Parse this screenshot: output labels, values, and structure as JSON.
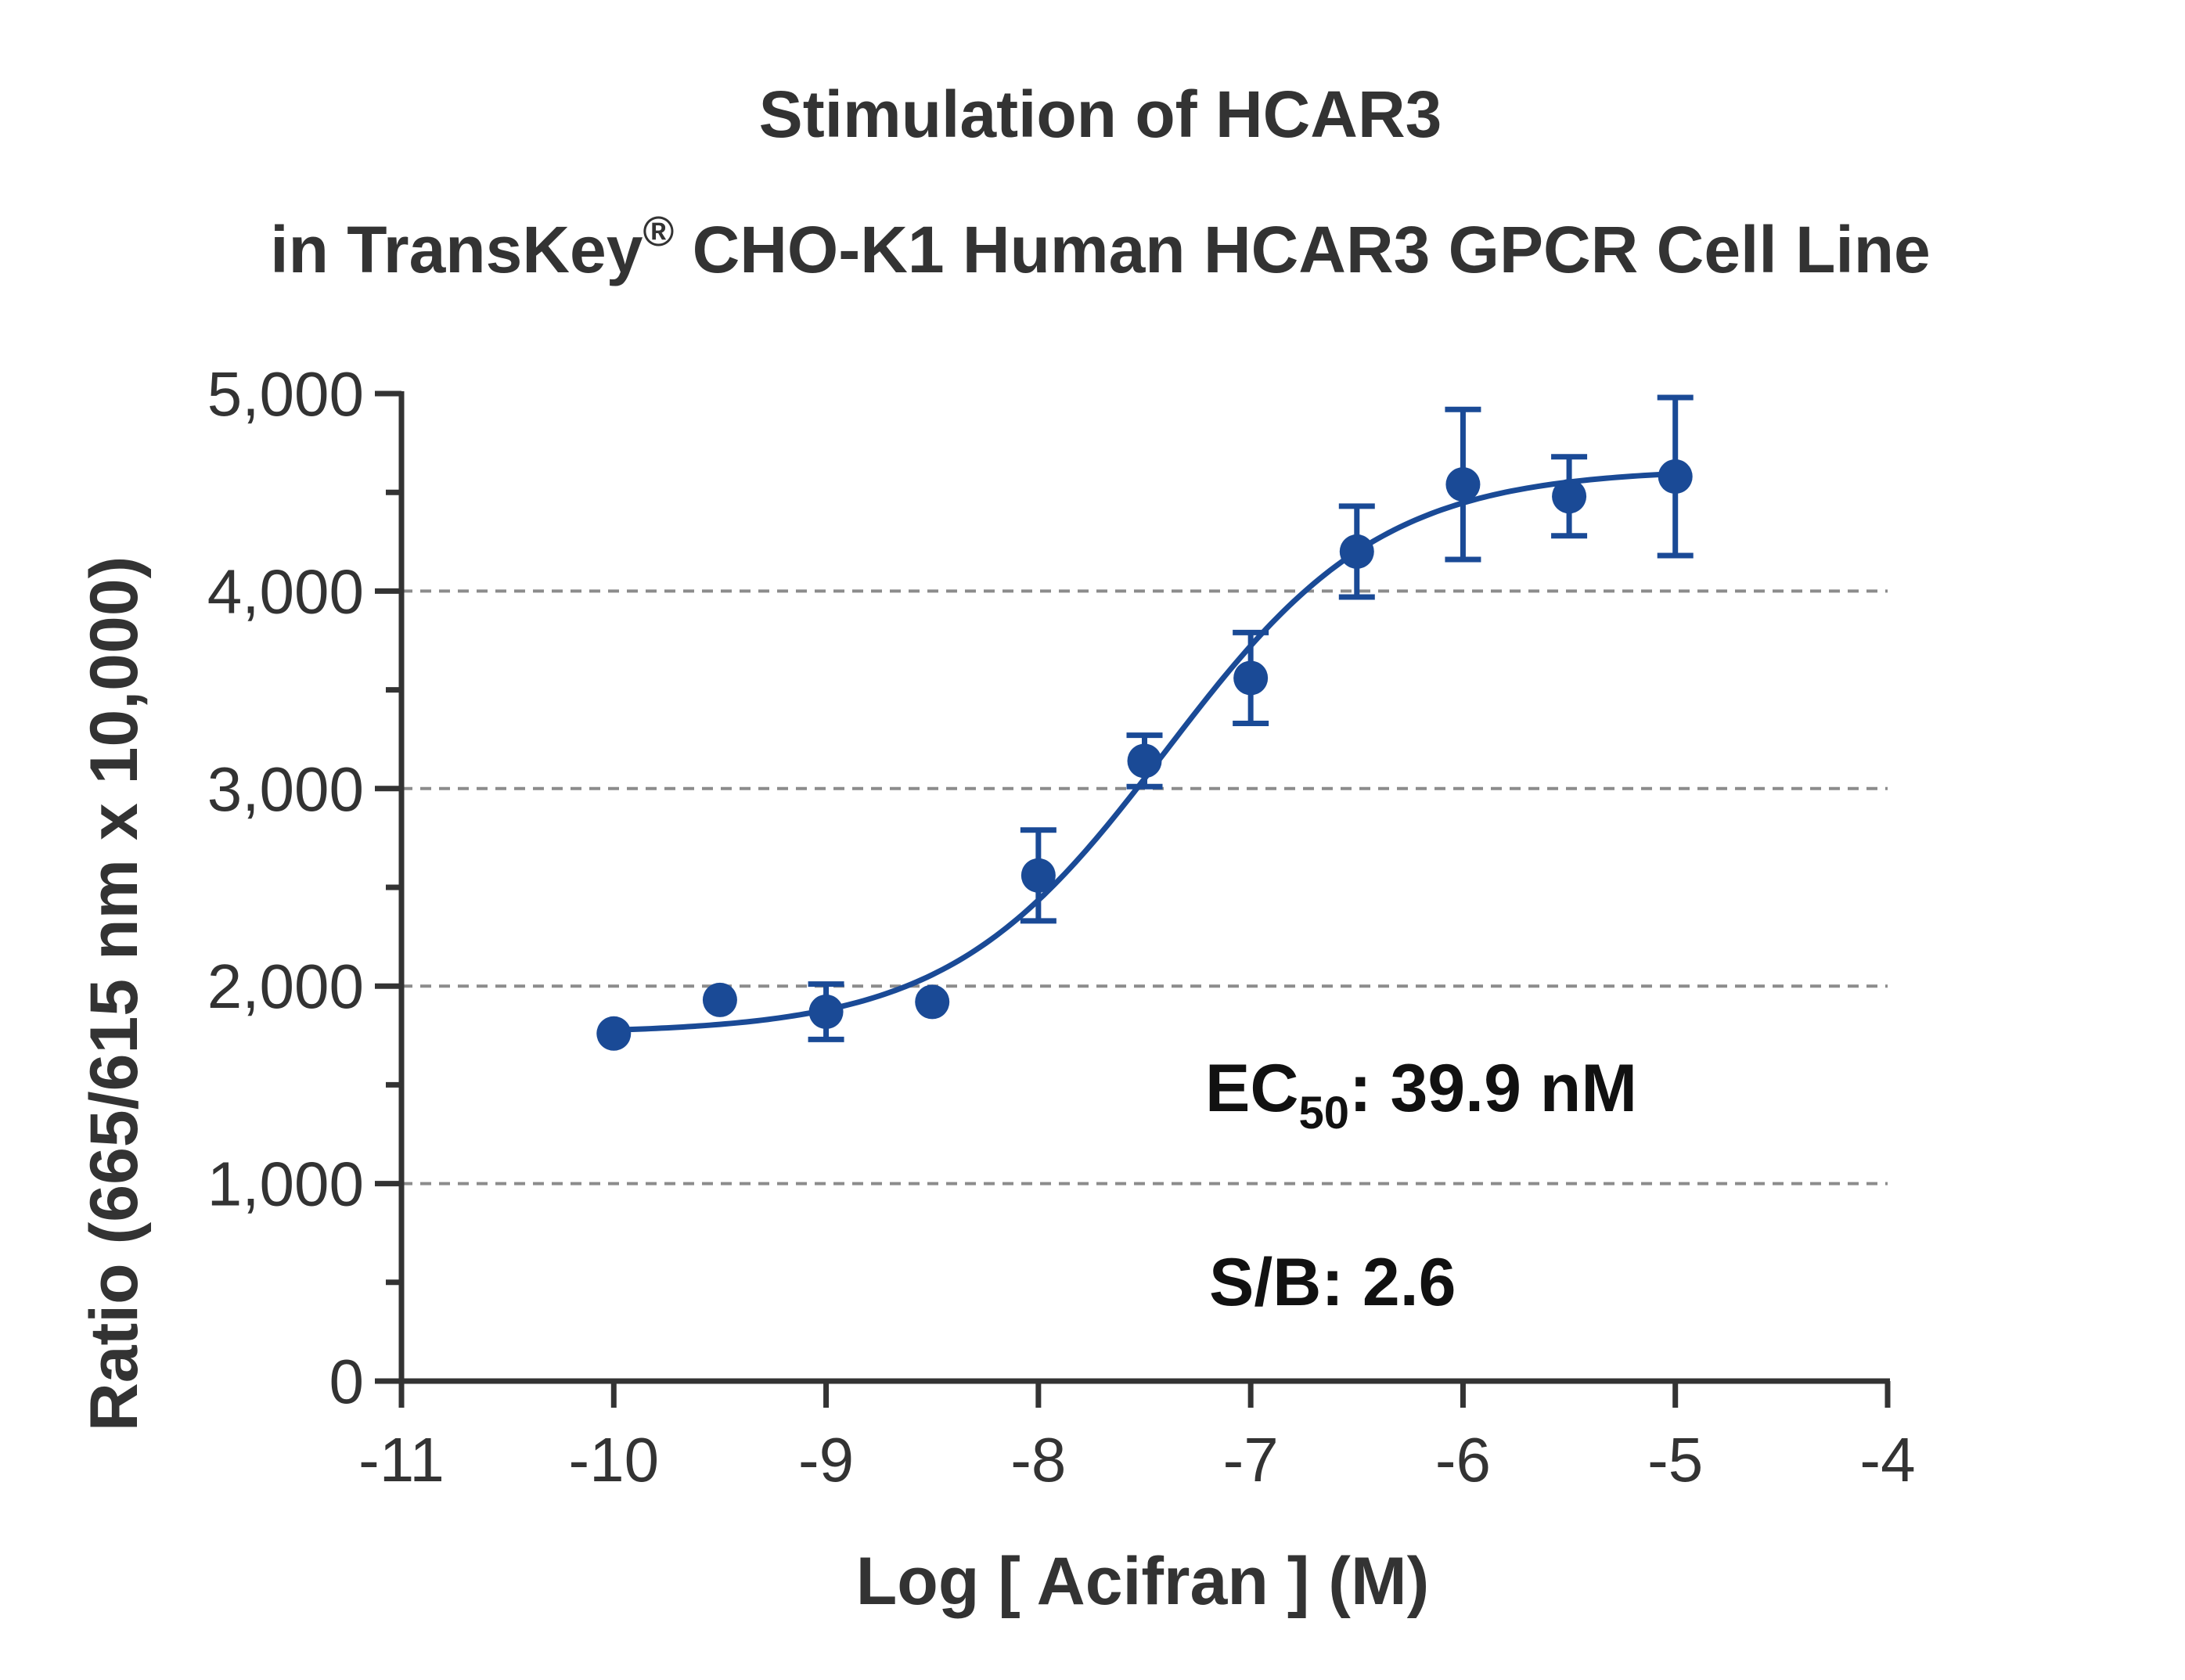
{
  "chart_data": {
    "type": "scatter",
    "title_line1": "Stimulation of  HCAR3",
    "title_line2_prefix": "in TransKey",
    "title_line2_reg": "®",
    "title_line2_suffix": " CHO-K1 Human HCAR3 GPCR Cell Line",
    "xlabel": "Log [ Acifran ]  (M)",
    "ylabel": "Ratio (665/615 nm x 10,000)",
    "xlim": [
      -11,
      -4
    ],
    "ylim": [
      0,
      5000
    ],
    "x_ticks": [
      -11,
      -10,
      -9,
      -8,
      -7,
      -6,
      -5,
      -4
    ],
    "x_tick_labels": [
      "-11",
      "-10",
      "-9",
      "-8",
      "-7",
      "-6",
      "-5",
      "-4"
    ],
    "y_ticks": [
      0,
      1000,
      2000,
      3000,
      4000,
      5000
    ],
    "y_tick_labels": [
      "0",
      "1,000",
      "2,000",
      "3,000",
      "4,000",
      "5,000"
    ],
    "grid": "horizontal dashed at 1,000 / 2,000 / 3,000 / 4,000",
    "series": [
      {
        "x": [
          -10,
          -9.5,
          -9,
          -8.5,
          -8,
          -7.5,
          -7,
          -6.5,
          -6,
          -5.5,
          -5
        ],
        "y": [
          1760,
          1930,
          1870,
          1920,
          2560,
          3140,
          3560,
          4200,
          4540,
          4480,
          4580
        ],
        "err": [
          20,
          20,
          140,
          20,
          230,
          130,
          230,
          230,
          380,
          200,
          400
        ],
        "color": "#1a4a96"
      }
    ],
    "fit": {
      "model": "4PL",
      "bottom": 1760,
      "top": 4620,
      "log_ec50": -7.4,
      "hill_slope": 0.85,
      "x_range": [
        -10,
        -5
      ]
    },
    "annotations": {
      "ec50_main": "EC",
      "ec50_sub": "50",
      "ec50_value": ": 39.9 nM",
      "sb": "S/B: 2.6"
    }
  }
}
